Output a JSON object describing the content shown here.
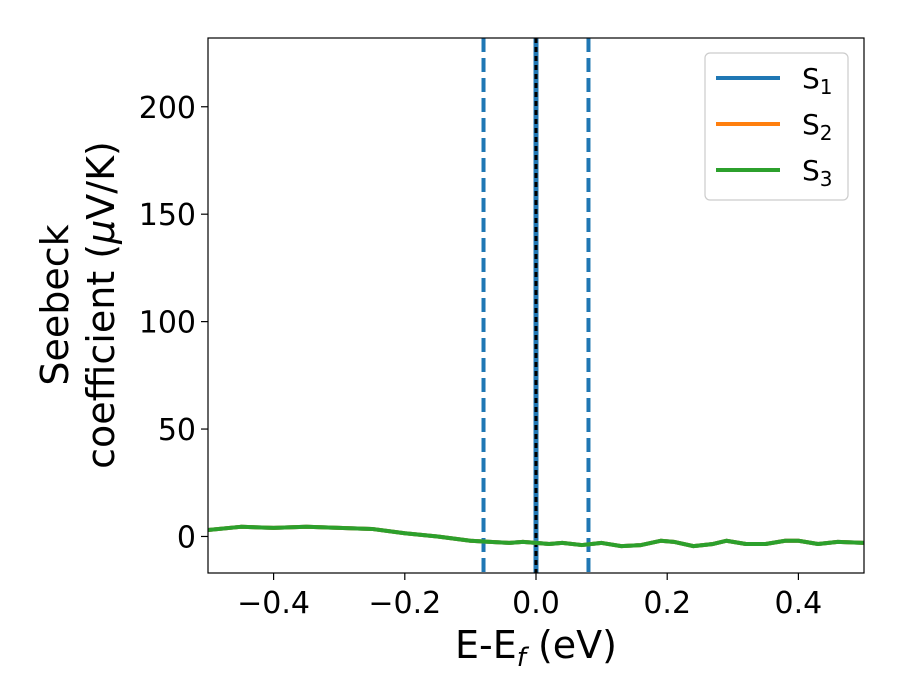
{
  "chart_data": {
    "type": "line",
    "xlabel": "E-E",
    "xlabel_sub": "f",
    "xlabel_unit": " (eV)",
    "ylabel_line1": "Seebeck",
    "ylabel_line2_a": "coefficient  (",
    "ylabel_line2_mu": "μ",
    "ylabel_line2_b": "V/K)",
    "xlim": [
      -0.5,
      0.5
    ],
    "ylim": [
      -17,
      232
    ],
    "xticks": [
      -0.4,
      -0.2,
      0.0,
      0.2,
      0.4
    ],
    "xtick_labels": [
      "−0.4",
      "−0.2",
      "0.0",
      "0.2",
      "0.4"
    ],
    "yticks": [
      0,
      50,
      100,
      150,
      200
    ],
    "ytick_labels": [
      "0",
      "50",
      "100",
      "150",
      "200"
    ],
    "grid": false,
    "legend_position": "top-right",
    "vlines": [
      {
        "x": -0.08,
        "style": "dashed",
        "color": "#1f77b4"
      },
      {
        "x": 0.0,
        "style": "solid",
        "color": "#1f77b4"
      },
      {
        "x": 0.0,
        "style": "dotted",
        "color": "#000000"
      },
      {
        "x": 0.08,
        "style": "dashed",
        "color": "#1f77b4"
      }
    ],
    "series": [
      {
        "name": "S",
        "sub": "1",
        "color": "#1f77b4",
        "x": [
          -0.5,
          -0.45,
          -0.4,
          -0.35,
          -0.3,
          -0.25,
          -0.2,
          -0.15,
          -0.1,
          -0.07,
          -0.04,
          -0.02,
          0.0,
          0.02,
          0.04,
          0.07,
          0.1,
          0.13,
          0.16,
          0.19,
          0.21,
          0.24,
          0.27,
          0.29,
          0.32,
          0.35,
          0.38,
          0.4,
          0.43,
          0.46,
          0.5
        ],
        "values": [
          3,
          4.5,
          4,
          4.5,
          4,
          3.5,
          1.5,
          0,
          -2,
          -2.5,
          -3,
          -2.5,
          -3,
          -3.5,
          -3,
          -4,
          -3,
          -4.5,
          -4,
          -2,
          -2.5,
          -4.5,
          -3.5,
          -2,
          -3.5,
          -3.5,
          -2,
          -2,
          -3.5,
          -2.5,
          -3
        ]
      },
      {
        "name": "S",
        "sub": "2",
        "color": "#ff7f0e",
        "x": [
          -0.5,
          -0.45,
          -0.4,
          -0.35,
          -0.3,
          -0.25,
          -0.2,
          -0.15,
          -0.1,
          -0.07,
          -0.04,
          -0.02,
          0.0,
          0.02,
          0.04,
          0.07,
          0.1,
          0.13,
          0.16,
          0.19,
          0.21,
          0.24,
          0.27,
          0.29,
          0.32,
          0.35,
          0.38,
          0.4,
          0.43,
          0.46,
          0.5
        ],
        "values": [
          3,
          4.5,
          4,
          4.5,
          4,
          3.5,
          1.5,
          0,
          -2,
          -2.5,
          -3,
          -2.5,
          -3,
          -3.5,
          -3,
          -4,
          -3,
          -4.5,
          -4,
          -2,
          -2.5,
          -4.5,
          -3.5,
          -2,
          -3.5,
          -3.5,
          -2,
          -2,
          -3.5,
          -2.5,
          -3
        ]
      },
      {
        "name": "S",
        "sub": "3",
        "color": "#2ca02c",
        "x": [
          -0.5,
          -0.45,
          -0.4,
          -0.35,
          -0.3,
          -0.25,
          -0.2,
          -0.15,
          -0.1,
          -0.07,
          -0.04,
          -0.02,
          0.0,
          0.02,
          0.04,
          0.07,
          0.1,
          0.13,
          0.16,
          0.19,
          0.21,
          0.24,
          0.27,
          0.29,
          0.32,
          0.35,
          0.38,
          0.4,
          0.43,
          0.46,
          0.5
        ],
        "values": [
          3,
          4.5,
          4,
          4.5,
          4,
          3.5,
          1.5,
          0,
          -2,
          -2.5,
          -3,
          -2.5,
          -3,
          -3.5,
          -3,
          -4,
          -3,
          -4.5,
          -4,
          -2,
          -2.5,
          -4.5,
          -3.5,
          -2,
          -3.5,
          -3.5,
          -2,
          -2,
          -3.5,
          -2.5,
          -3
        ]
      }
    ]
  }
}
